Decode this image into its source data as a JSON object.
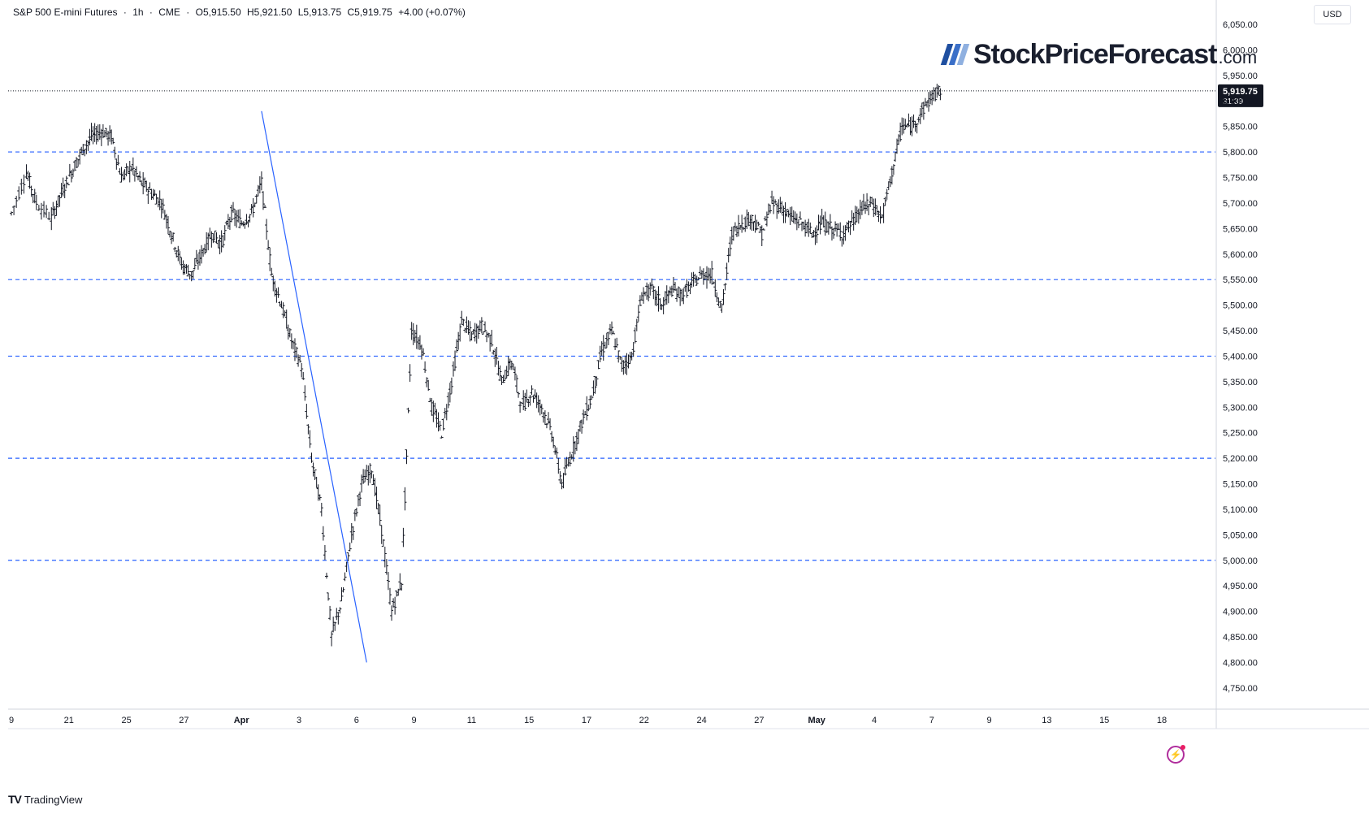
{
  "header": {
    "symbol": "S&P 500 E-mini Futures",
    "interval": "1h",
    "exchange": "CME",
    "open": "O5,915.50",
    "high": "H5,921.50",
    "low": "L5,913.75",
    "close": "C5,919.75",
    "change": "+4.00 (+0.07%)",
    "separator": "·"
  },
  "currency": "USD",
  "logo": {
    "name": "StockPriceForecast",
    "domain": ".com",
    "colors": [
      "#1f4fa0",
      "#3a6fc8",
      "#8fb0e0"
    ]
  },
  "footer": {
    "brand": "TradingView",
    "icon": "tradingview-logo-icon"
  },
  "price_label": {
    "value": "5,919.75",
    "countdown": "31:39"
  },
  "flash_icon": "lightning-icon",
  "colors": {
    "candles": "#131722",
    "support_lines": "#2962ff",
    "trend_line": "#2962ff",
    "last_price_line": "#131722",
    "grid": "#f0f3fa"
  },
  "chart_data": {
    "type": "candlestick",
    "title": "S&P 500 E-mini Futures · 1h · CME",
    "ylim": [
      4710,
      6085
    ],
    "y_ticks": [
      "6,050.00",
      "6,000.00",
      "5,950.00",
      "5,900.00",
      "5,850.00",
      "5,800.00",
      "5,750.00",
      "5,700.00",
      "5,650.00",
      "5,600.00",
      "5,550.00",
      "5,500.00",
      "5,450.00",
      "5,400.00",
      "5,350.00",
      "5,300.00",
      "5,250.00",
      "5,200.00",
      "5,150.00",
      "5,100.00",
      "5,050.00",
      "5,000.00",
      "4,950.00",
      "4,900.00",
      "4,850.00",
      "4,800.00",
      "4,750.00"
    ],
    "x_ticks": [
      "9",
      "21",
      "25",
      "27",
      "Apr",
      "3",
      "6",
      "9",
      "11",
      "15",
      "17",
      "22",
      "24",
      "27",
      "May",
      "4",
      "7",
      "9",
      "13",
      "15",
      "18"
    ],
    "horizontal_levels": [
      5800,
      5550,
      5400,
      5200,
      5000
    ],
    "last_price": 5919.75,
    "trend_line": {
      "start": {
        "date": "Apr 2",
        "price": 5880
      },
      "end": {
        "date": "Apr 8",
        "price": 4800
      }
    },
    "series": [
      {
        "values": [
          [
            0,
            5680
          ],
          [
            3,
            5760
          ],
          [
            5,
            5700
          ],
          [
            8,
            5670
          ],
          [
            10,
            5720
          ],
          [
            12,
            5760
          ],
          [
            14,
            5800
          ],
          [
            16,
            5830
          ],
          [
            18,
            5840
          ],
          [
            20,
            5830
          ],
          [
            22,
            5750
          ],
          [
            24,
            5770
          ],
          [
            26,
            5740
          ],
          [
            28,
            5720
          ],
          [
            30,
            5700
          ],
          [
            32,
            5640
          ],
          [
            34,
            5580
          ],
          [
            36,
            5560
          ],
          [
            38,
            5600
          ],
          [
            40,
            5640
          ],
          [
            42,
            5620
          ],
          [
            44,
            5680
          ],
          [
            46,
            5660
          ],
          [
            48,
            5680
          ],
          [
            50,
            5740
          ],
          [
            52,
            5560
          ],
          [
            54,
            5500
          ],
          [
            56,
            5430
          ],
          [
            58,
            5380
          ],
          [
            60,
            5200
          ],
          [
            62,
            5100
          ],
          [
            64,
            4850
          ],
          [
            66,
            4920
          ],
          [
            68,
            5050
          ],
          [
            70,
            5150
          ],
          [
            72,
            5180
          ],
          [
            74,
            5060
          ],
          [
            76,
            4900
          ],
          [
            78,
            4960
          ],
          [
            80,
            5450
          ],
          [
            82,
            5420
          ],
          [
            84,
            5300
          ],
          [
            86,
            5250
          ],
          [
            88,
            5350
          ],
          [
            90,
            5470
          ],
          [
            92,
            5440
          ],
          [
            94,
            5460
          ],
          [
            96,
            5430
          ],
          [
            98,
            5350
          ],
          [
            100,
            5390
          ],
          [
            102,
            5300
          ],
          [
            104,
            5330
          ],
          [
            106,
            5300
          ],
          [
            108,
            5250
          ],
          [
            110,
            5150
          ],
          [
            112,
            5210
          ],
          [
            114,
            5270
          ],
          [
            116,
            5320
          ],
          [
            118,
            5410
          ],
          [
            120,
            5450
          ],
          [
            122,
            5380
          ],
          [
            124,
            5400
          ],
          [
            126,
            5520
          ],
          [
            128,
            5530
          ],
          [
            130,
            5500
          ],
          [
            132,
            5530
          ],
          [
            134,
            5520
          ],
          [
            136,
            5540
          ],
          [
            138,
            5560
          ],
          [
            140,
            5560
          ],
          [
            142,
            5490
          ],
          [
            144,
            5640
          ],
          [
            146,
            5660
          ],
          [
            148,
            5670
          ],
          [
            150,
            5640
          ],
          [
            152,
            5700
          ],
          [
            154,
            5690
          ],
          [
            156,
            5670
          ],
          [
            158,
            5660
          ],
          [
            160,
            5640
          ],
          [
            162,
            5660
          ],
          [
            164,
            5650
          ],
          [
            166,
            5640
          ],
          [
            168,
            5660
          ],
          [
            170,
            5690
          ],
          [
            172,
            5700
          ],
          [
            174,
            5670
          ],
          [
            176,
            5760
          ],
          [
            178,
            5850
          ],
          [
            180,
            5850
          ],
          [
            182,
            5880
          ],
          [
            184,
            5910
          ],
          [
            186,
            5920
          ]
        ]
      }
    ]
  }
}
